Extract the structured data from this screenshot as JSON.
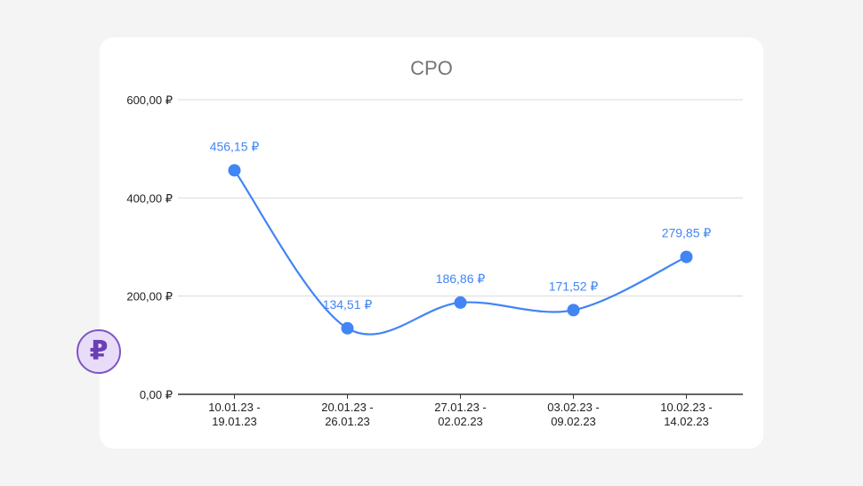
{
  "chart_data": {
    "type": "line",
    "title": "CPO",
    "categories": [
      [
        "10.01.23 -",
        "19.01.23"
      ],
      [
        "20.01.23 -",
        "26.01.23"
      ],
      [
        "27.01.23 -",
        "02.02.23"
      ],
      [
        "03.02.23 -",
        "09.02.23"
      ],
      [
        "10.02.23 -",
        "14.02.23"
      ]
    ],
    "values": [
      456.15,
      134.51,
      186.86,
      171.52,
      279.85
    ],
    "data_labels": [
      "456,15 ₽",
      "134,51 ₽",
      "186,86 ₽",
      "171,52 ₽",
      "279,85 ₽"
    ],
    "y_ticks": [
      0,
      200,
      400,
      600
    ],
    "y_tick_labels": [
      "0,00 ₽",
      "200,00 ₽",
      "400,00 ₽",
      "600,00 ₽"
    ],
    "ylim": [
      0,
      600
    ],
    "grid": true,
    "smooth": true,
    "colors": {
      "line": "#4285f4",
      "label": "#4285f4",
      "grid": "#d9d9d9",
      "axis": "#333333",
      "title": "#757575"
    }
  },
  "badge": {
    "symbol": "₽",
    "icon": "ruble-icon"
  }
}
